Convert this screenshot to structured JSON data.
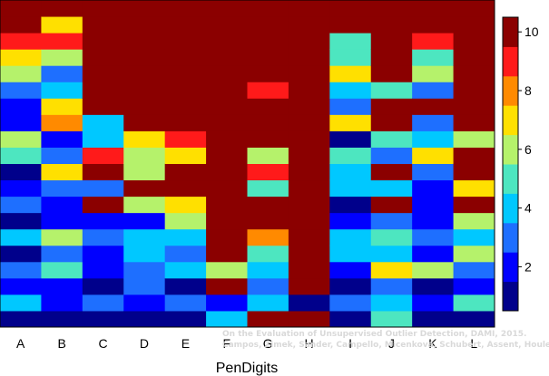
{
  "chart_data": {
    "type": "heatmap",
    "title": "",
    "xlabel": "PenDigits",
    "ylabel": "",
    "categories": [
      "A",
      "B",
      "C",
      "D",
      "E",
      "F",
      "G",
      "H",
      "I",
      "J",
      "K",
      "L"
    ],
    "value_range": [
      0.5,
      10.5
    ],
    "colorbar": {
      "ticks": [
        2,
        4,
        6,
        8,
        10
      ],
      "ticklabels": [
        "2",
        "4",
        "6",
        "8",
        "10"
      ],
      "colors": [
        "#00008b",
        "#0000ff",
        "#1e6fff",
        "#00c8ff",
        "#4de6c0",
        "#b5f26b",
        "#ffe000",
        "#ff8a00",
        "#ff1a1a",
        "#8b0000"
      ]
    },
    "columns": [
      {
        "name": "A",
        "values": [
          1,
          4,
          2,
          3,
          1,
          4,
          1,
          3,
          2,
          1,
          5,
          6,
          2,
          2,
          3,
          6,
          7,
          9,
          10,
          10
        ]
      },
      {
        "name": "B",
        "values": [
          1,
          2,
          2,
          5,
          3,
          6,
          2,
          2,
          3,
          7,
          3,
          2,
          8,
          7,
          4,
          3,
          6,
          9,
          7,
          10
        ]
      },
      {
        "name": "C",
        "values": [
          1,
          3,
          1,
          2,
          2,
          3,
          2,
          10,
          3,
          10,
          9,
          4,
          4,
          10,
          10,
          10,
          10,
          10,
          10,
          10
        ]
      },
      {
        "name": "D",
        "values": [
          1,
          2,
          3,
          3,
          4,
          4,
          2,
          6,
          10,
          6,
          6,
          7,
          10,
          10,
          10,
          10,
          10,
          10,
          10,
          10
        ]
      },
      {
        "name": "E",
        "values": [
          1,
          3,
          1,
          4,
          3,
          4,
          6,
          7,
          10,
          10,
          7,
          9,
          10,
          10,
          10,
          10,
          10,
          10,
          10,
          10
        ]
      },
      {
        "name": "F",
        "values": [
          4,
          2,
          10,
          6,
          10,
          10,
          10,
          10,
          10,
          10,
          10,
          10,
          10,
          10,
          10,
          10,
          10,
          10,
          10,
          10
        ]
      },
      {
        "name": "G",
        "values": [
          10,
          4,
          3,
          4,
          5,
          8,
          10,
          10,
          5,
          9,
          6,
          10,
          10,
          10,
          9,
          10,
          10,
          10,
          10,
          10
        ]
      },
      {
        "name": "H",
        "values": [
          10,
          1,
          10,
          10,
          10,
          10,
          10,
          10,
          10,
          10,
          10,
          10,
          10,
          10,
          10,
          10,
          10,
          10,
          10,
          10
        ]
      },
      {
        "name": "I",
        "values": [
          1,
          3,
          1,
          2,
          4,
          4,
          2,
          1,
          4,
          4,
          5,
          1,
          7,
          3,
          4,
          7,
          5,
          5,
          10,
          10
        ]
      },
      {
        "name": "J",
        "values": [
          5,
          4,
          3,
          7,
          4,
          5,
          3,
          10,
          4,
          10,
          3,
          5,
          10,
          10,
          5,
          10,
          10,
          10,
          10,
          10
        ]
      },
      {
        "name": "K",
        "values": [
          1,
          2,
          1,
          6,
          2,
          3,
          2,
          2,
          2,
          3,
          7,
          4,
          3,
          10,
          3,
          6,
          5,
          9,
          10,
          10
        ]
      },
      {
        "name": "L",
        "values": [
          1,
          5,
          2,
          3,
          6,
          4,
          6,
          10,
          7,
          10,
          10,
          6,
          10,
          10,
          10,
          10,
          10,
          10,
          10,
          10
        ]
      }
    ]
  },
  "watermark": {
    "line1": "On the Evaluation of Unsupervised Outlier Detection, DAMI, 2015.",
    "line2": "Campos, Zimek, Sander, Campello, Micenková, Schubert, Assent, Houle"
  }
}
